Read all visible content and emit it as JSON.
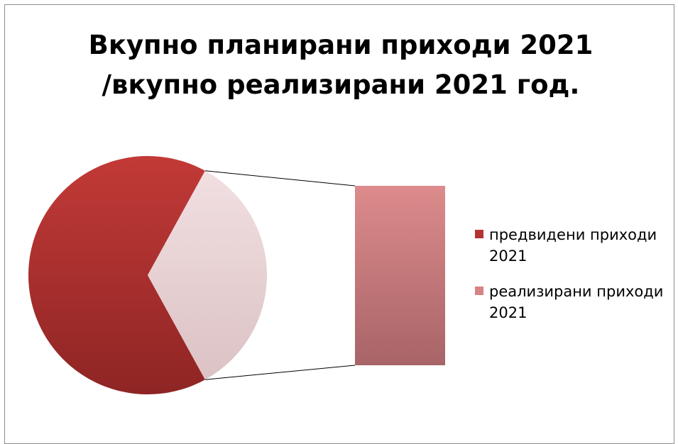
{
  "chart_data": {
    "type": "pie",
    "subtype": "pie-of-pie (bar of pie)",
    "title_lines": [
      "Вкупно планирани приходи 2021",
      "/вкупно реализирани 2021 год."
    ],
    "categories": [
      "предвидени приходи 2021",
      "реализирани приходи 2021"
    ],
    "values": [
      66,
      34
    ],
    "value_unit": "percent (estimated from slice angles)",
    "secondary_bar_values": [
      34
    ],
    "legend_position": "right",
    "colors": {
      "planned": "#b23331",
      "realized": "#d78283",
      "realized_pie_slice": "#ead4d6",
      "connector": "#000000"
    }
  }
}
